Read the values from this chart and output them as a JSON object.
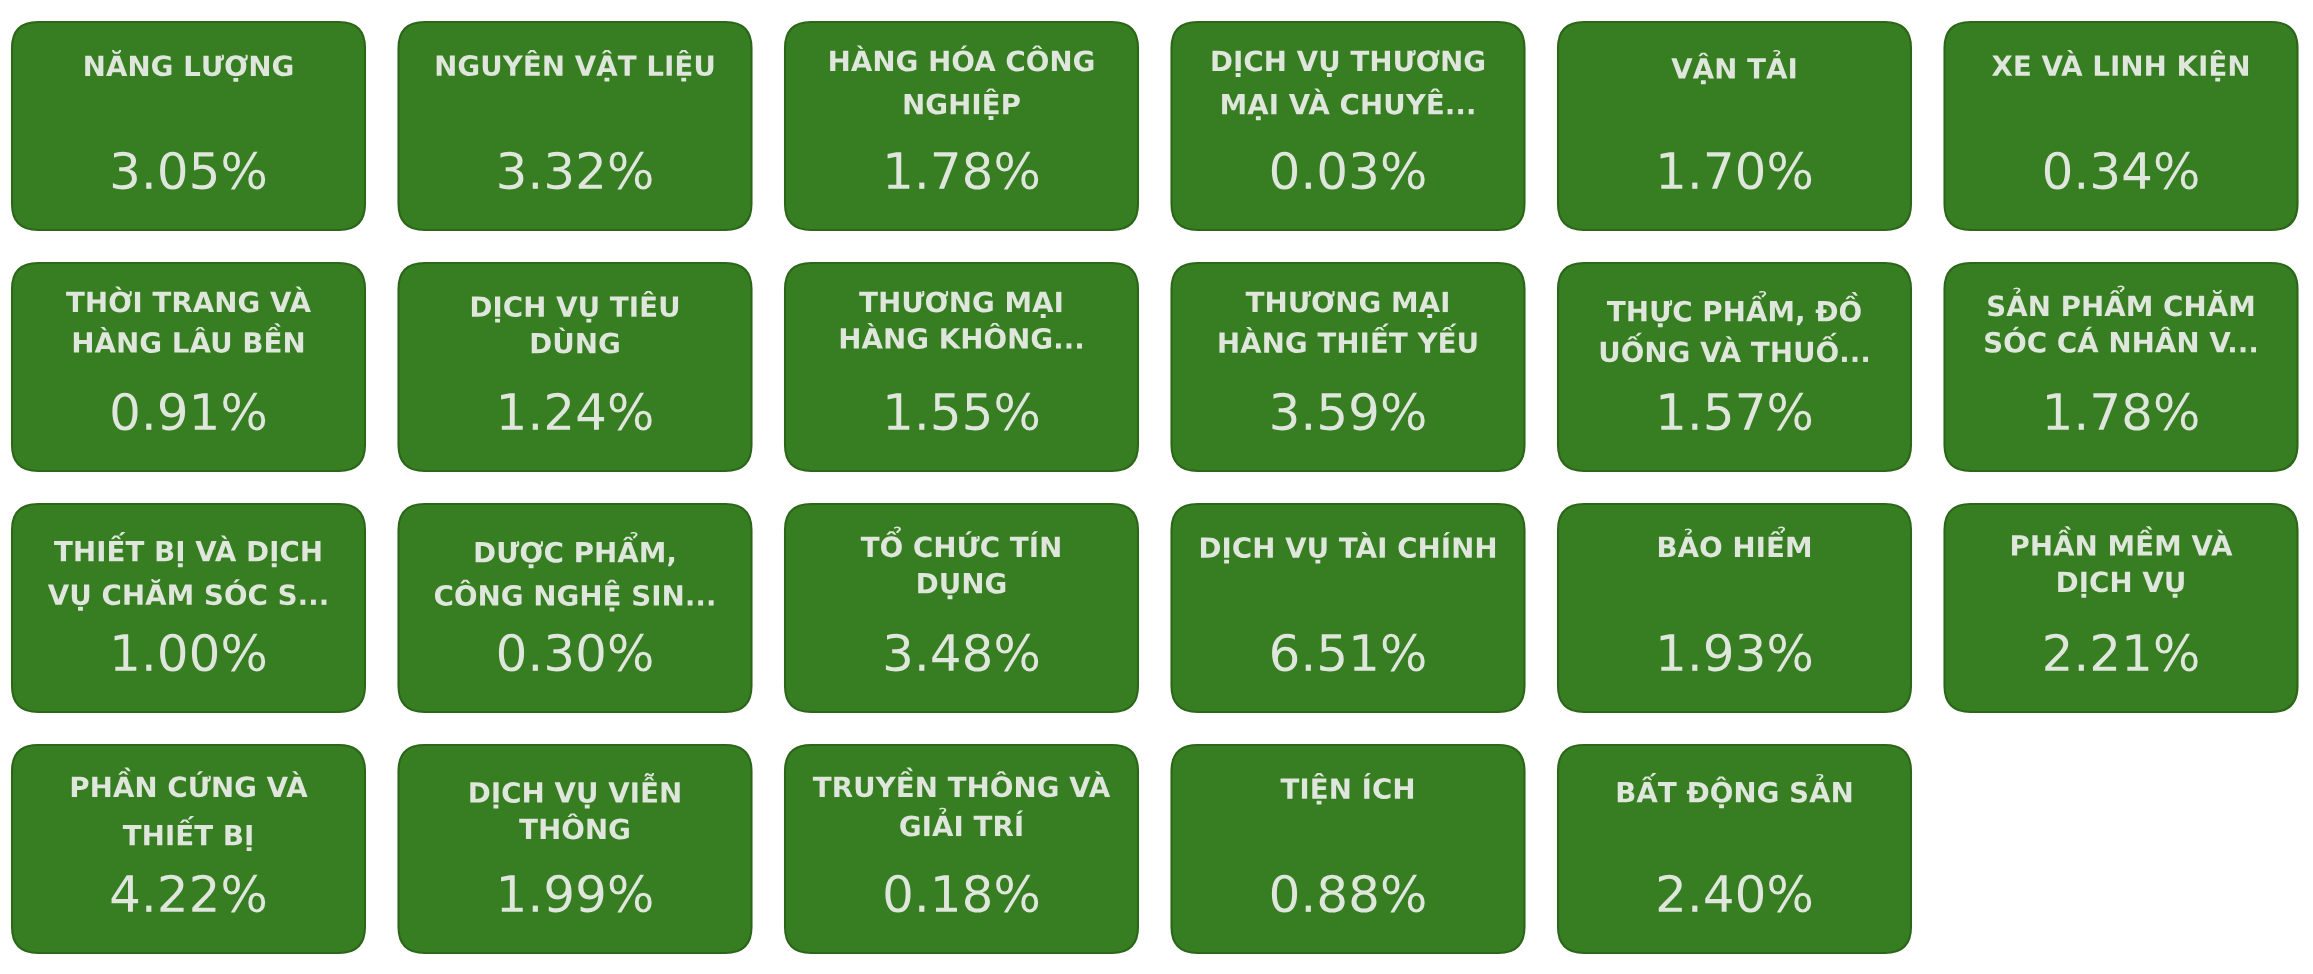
{
  "chart_data": {
    "type": "other",
    "color": "#377e22",
    "categories": [
      "NĂNG LƯỢNG",
      "NGUYÊN VẬT LIỆU",
      "HÀNG HÓA CÔNG\nNGHIỆP",
      "DỊCH VỤ THƯƠNG\nMẠI VÀ CHUYÊ...",
      "VẬN TẢI",
      "XE VÀ LINH KIỆN",
      "THỜI TRANG VÀ\nHÀNG LÂU BỀN",
      "DỊCH VỤ TIÊU\nDÙNG",
      "THƯƠNG MẠI\nHÀNG KHÔNG...",
      "THƯƠNG MẠI\nHÀNG THIẾT YẾU",
      "THỰC PHẨM, ĐỒ\nUỐNG VÀ THUỐ...",
      "SẢN PHẨM CHĂM\nSÓC CÁ NHÂN V...",
      "THIẾT BỊ VÀ DỊCH\nVỤ CHĂM SÓC S...",
      "DƯỢC PHẨM,\nCÔNG NGHỆ SIN...",
      "TỔ CHỨC TÍN\nDỤNG",
      "DỊCH VỤ TÀI CHÍNH",
      "BẢO HIỂM",
      "PHẦN MỀM VÀ\nDỊCH VỤ",
      "PHẦN CỨNG VÀ\nTHIẾT BỊ",
      "DỊCH VỤ VIỄN\nTHÔNG",
      "TRUYỀN THÔNG VÀ\nGIẢI TRÍ",
      "TIỆN ÍCH",
      "BẤT ĐỘNG SẢN"
    ],
    "values": [
      3.05,
      3.32,
      1.78,
      0.03,
      1.7,
      0.34,
      0.91,
      1.24,
      1.55,
      3.59,
      1.57,
      1.78,
      1.0,
      0.3,
      3.48,
      6.51,
      1.93,
      2.21,
      4.22,
      1.99,
      0.18,
      0.88,
      2.4
    ],
    "value_labels": [
      "3.05%",
      "3.32%",
      "1.78%",
      "0.03%",
      "1.70%",
      "0.34%",
      "0.91%",
      "1.24%",
      "1.55%",
      "3.59%",
      "1.57%",
      "1.78%",
      "1.00%",
      "0.30%",
      "3.48%",
      "6.51%",
      "1.93%",
      "2.21%",
      "4.22%",
      "1.99%",
      "0.18%",
      "0.88%",
      "2.40%"
    ]
  }
}
